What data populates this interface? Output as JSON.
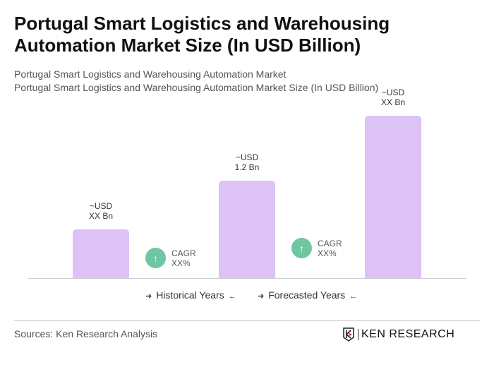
{
  "title": "Portugal Smart Logistics and Warehousing Automation Market Size (In USD Billion)",
  "subtitle1": "Portugal Smart Logistics and Warehousing Automation Market",
  "subtitle2": "Portugal Smart Logistics and Warehousing Automation Market Size (In USD Billion)",
  "chart_data": {
    "type": "bar",
    "categories": [
      "",
      "",
      ""
    ],
    "values": [
      0.6,
      1.2,
      2.0
    ],
    "data_labels": [
      [
        "~USD",
        "XX Bn"
      ],
      [
        "~USD",
        "1.2 Bn"
      ],
      [
        "~USD",
        "XX Bn"
      ]
    ],
    "ylim": [
      0,
      2.0
    ],
    "grid": false,
    "bar_color": "#dcc2f7",
    "cagr": [
      {
        "label": "CAGR",
        "value": "XX%",
        "icon": "arrow-up-icon"
      },
      {
        "label": "CAGR",
        "value": "XX%",
        "icon": "arrow-up-icon"
      }
    ],
    "legend": [
      "Historical Years",
      "Forecasted Years"
    ]
  },
  "colors": {
    "cagr": "#6fc6a2",
    "bar": "#dcc2f7"
  },
  "footer": {
    "source": "Sources: Ken Research Analysis",
    "logo": "KEN RESEARCH"
  }
}
